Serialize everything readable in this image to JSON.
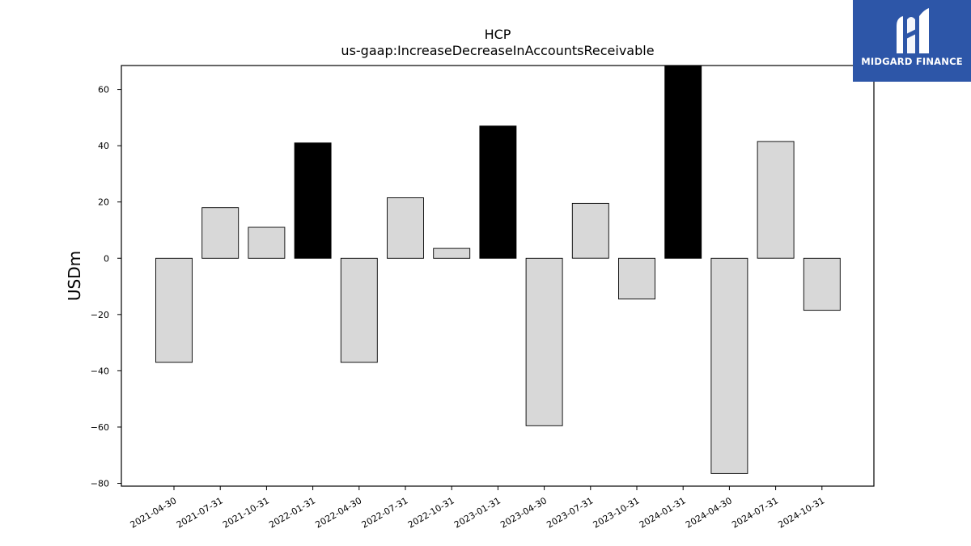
{
  "logo": {
    "text": "MIDGARD FINANCE"
  },
  "chart_data": {
    "type": "bar",
    "title": "HCP",
    "subtitle": "us-gaap:IncreaseDecreaseInAccountsReceivable",
    "ylabel": "USDm",
    "xlabel": "",
    "ylim": [
      -81,
      68.5
    ],
    "yticks": [
      60,
      40,
      20,
      0,
      -20,
      -40,
      -60,
      -80
    ],
    "ytick_labels": [
      "60",
      "40",
      "20",
      "0",
      "−20",
      "−40",
      "−60",
      "−80"
    ],
    "grid": false,
    "categories": [
      "2021-04-30",
      "2021-07-31",
      "2021-10-31",
      "2022-01-31",
      "2022-04-30",
      "2022-07-31",
      "2022-10-31",
      "2023-01-31",
      "2023-04-30",
      "2023-07-31",
      "2023-10-31",
      "2024-01-31",
      "2024-04-30",
      "2024-07-31",
      "2024-10-31"
    ],
    "values": [
      -37,
      18,
      11,
      41,
      -37,
      21.5,
      3.5,
      47,
      -59.5,
      19.5,
      -14.5,
      68.5,
      -76.5,
      41.5,
      -18.5
    ],
    "colors": {
      "normal": "#d8d8d8",
      "highlight": "#000000",
      "edge": "#000000"
    },
    "highlight_categories": [
      "2022-01-31",
      "2023-01-31",
      "2024-01-31"
    ]
  }
}
